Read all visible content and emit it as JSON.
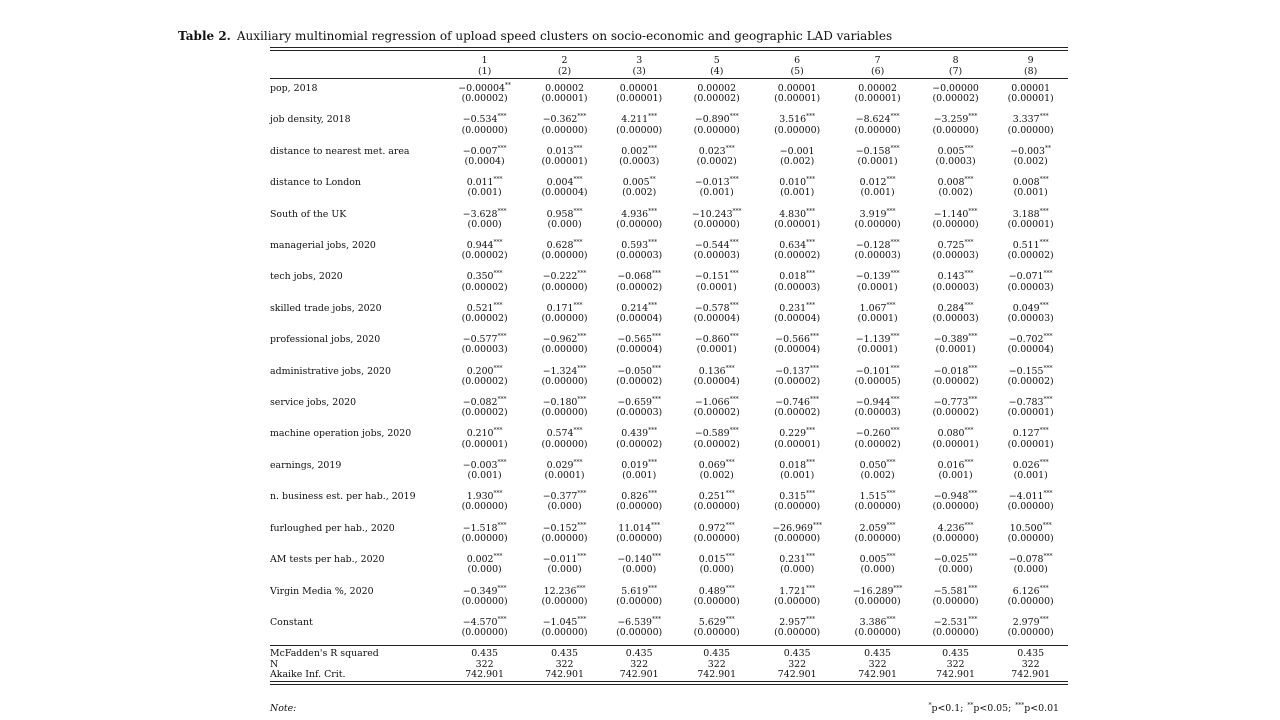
{
  "caption": {
    "label": "Table 2.",
    "text": "Auxiliary multinomial regression of upload speed clusters on socio-economic and geographic LAD variables"
  },
  "columns": {
    "top": [
      "1",
      "2",
      "3",
      "5",
      "6",
      "7",
      "8",
      "9"
    ],
    "sub": [
      "(1)",
      "(2)",
      "(3)",
      "(4)",
      "(5)",
      "(6)",
      "(7)",
      "(8)"
    ]
  },
  "rows": [
    {
      "label": "pop, 2018",
      "coef": [
        "−0.00004",
        "0.00002",
        "0.00001",
        "0.00002",
        "0.00001",
        "0.00002",
        "−0.00000",
        "0.00001"
      ],
      "stars": [
        "**",
        "",
        "",
        "",
        "",
        "",
        "",
        ""
      ],
      "se": [
        "(0.00002)",
        "(0.00001)",
        "(0.00001)",
        "(0.00002)",
        "(0.00001)",
        "(0.00001)",
        "(0.00002)",
        "(0.00001)"
      ]
    },
    {
      "label": "job density, 2018",
      "coef": [
        "−0.534",
        "−0.362",
        "4.211",
        "−0.890",
        "3.516",
        "−8.624",
        "−3.259",
        "3.337"
      ],
      "stars": [
        "***",
        "***",
        "***",
        "***",
        "***",
        "***",
        "***",
        "***"
      ],
      "se": [
        "(0.00000)",
        "(0.00000)",
        "(0.00000)",
        "(0.00000)",
        "(0.00000)",
        "(0.00000)",
        "(0.00000)",
        "(0.00000)"
      ]
    },
    {
      "label": "distance to nearest met. area",
      "coef": [
        "−0.007",
        "0.013",
        "0.002",
        "0.023",
        "−0.001",
        "−0.158",
        "0.005",
        "−0.003"
      ],
      "stars": [
        "***",
        "***",
        "***",
        "***",
        "",
        "***",
        "***",
        "**"
      ],
      "se": [
        "(0.0004)",
        "(0.00001)",
        "(0.0003)",
        "(0.0002)",
        "(0.002)",
        "(0.0001)",
        "(0.0003)",
        "(0.002)"
      ]
    },
    {
      "label": "distance to London",
      "coef": [
        "0.011",
        "0.004",
        "0.005",
        "−0.013",
        "0.010",
        "0.012",
        "0.008",
        "0.008"
      ],
      "stars": [
        "***",
        "***",
        "**",
        "***",
        "***",
        "***",
        "***",
        "***"
      ],
      "se": [
        "(0.001)",
        "(0.00004)",
        "(0.002)",
        "(0.001)",
        "(0.001)",
        "(0.001)",
        "(0.002)",
        "(0.001)"
      ]
    },
    {
      "label": "South of the UK",
      "coef": [
        "−3.628",
        "0.958",
        "4.936",
        "−10.243",
        "4.830",
        "3.919",
        "−1.140",
        "3.188"
      ],
      "stars": [
        "***",
        "***",
        "***",
        "***",
        "***",
        "***",
        "***",
        "***"
      ],
      "se": [
        "(0.000)",
        "(0.000)",
        "(0.00000)",
        "(0.00000)",
        "(0.00001)",
        "(0.00000)",
        "(0.00000)",
        "(0.00001)"
      ]
    },
    {
      "label": "managerial jobs, 2020",
      "coef": [
        "0.944",
        "0.628",
        "0.593",
        "−0.544",
        "0.634",
        "−0.128",
        "0.725",
        "0.511"
      ],
      "stars": [
        "***",
        "***",
        "***",
        "***",
        "***",
        "***",
        "***",
        "***"
      ],
      "se": [
        "(0.00002)",
        "(0.00000)",
        "(0.00003)",
        "(0.00003)",
        "(0.00002)",
        "(0.00003)",
        "(0.00003)",
        "(0.00002)"
      ]
    },
    {
      "label": "tech jobs, 2020",
      "coef": [
        "0.350",
        "−0.222",
        "−0.068",
        "−0.151",
        "0.018",
        "−0.139",
        "0.143",
        "−0.071"
      ],
      "stars": [
        "***",
        "***",
        "***",
        "***",
        "***",
        "***",
        "***",
        "***"
      ],
      "se": [
        "(0.00002)",
        "(0.00000)",
        "(0.00002)",
        "(0.0001)",
        "(0.00003)",
        "(0.0001)",
        "(0.00003)",
        "(0.00003)"
      ]
    },
    {
      "label": "skilled trade jobs, 2020",
      "coef": [
        "0.521",
        "0.171",
        "0.214",
        "−0.578",
        "0.231",
        "1.067",
        "0.284",
        "0.049"
      ],
      "stars": [
        "***",
        "***",
        "***",
        "***",
        "***",
        "***",
        "***",
        "***"
      ],
      "se": [
        "(0.00002)",
        "(0.00000)",
        "(0.00004)",
        "(0.00004)",
        "(0.00004)",
        "(0.0001)",
        "(0.00003)",
        "(0.00003)"
      ]
    },
    {
      "label": "professional jobs, 2020",
      "coef": [
        "−0.577",
        "−0.962",
        "−0.565",
        "−0.860",
        "−0.566",
        "−1.139",
        "−0.389",
        "−0.702"
      ],
      "stars": [
        "***",
        "***",
        "***",
        "***",
        "***",
        "***",
        "***",
        "***"
      ],
      "se": [
        "(0.00003)",
        "(0.00000)",
        "(0.00004)",
        "(0.0001)",
        "(0.00004)",
        "(0.0001)",
        "(0.0001)",
        "(0.00004)"
      ]
    },
    {
      "label": "administrative jobs, 2020",
      "coef": [
        "0.200",
        "−1.324",
        "−0.050",
        "0.136",
        "−0.137",
        "−0.101",
        "−0.018",
        "−0.155"
      ],
      "stars": [
        "***",
        "***",
        "***",
        "***",
        "***",
        "***",
        "***",
        "***"
      ],
      "se": [
        "(0.00002)",
        "(0.00000)",
        "(0.00002)",
        "(0.00004)",
        "(0.00002)",
        "(0.00005)",
        "(0.00002)",
        "(0.00002)"
      ]
    },
    {
      "label": "service jobs, 2020",
      "coef": [
        "−0.082",
        "−0.180",
        "−0.659",
        "−1.066",
        "−0.746",
        "−0.944",
        "−0.773",
        "−0.783"
      ],
      "stars": [
        "***",
        "***",
        "***",
        "***",
        "***",
        "***",
        "***",
        "***"
      ],
      "se": [
        "(0.00002)",
        "(0.00000)",
        "(0.00003)",
        "(0.00002)",
        "(0.00002)",
        "(0.00003)",
        "(0.00002)",
        "(0.00001)"
      ]
    },
    {
      "label": "machine operation jobs, 2020",
      "coef": [
        "0.210",
        "0.574",
        "0.439",
        "−0.589",
        "0.229",
        "−0.260",
        "0.080",
        "0.127"
      ],
      "stars": [
        "***",
        "***",
        "***",
        "***",
        "***",
        "***",
        "***",
        "***"
      ],
      "se": [
        "(0.00001)",
        "(0.00000)",
        "(0.00002)",
        "(0.00002)",
        "(0.00001)",
        "(0.00002)",
        "(0.00001)",
        "(0.00001)"
      ]
    },
    {
      "label": "earnings, 2019",
      "coef": [
        "−0.003",
        "0.029",
        "0.019",
        "0.069",
        "0.018",
        "0.050",
        "0.016",
        "0.026"
      ],
      "stars": [
        "***",
        "***",
        "***",
        "***",
        "***",
        "***",
        "***",
        "***"
      ],
      "se": [
        "(0.001)",
        "(0.0001)",
        "(0.001)",
        "(0.002)",
        "(0.001)",
        "(0.002)",
        "(0.001)",
        "(0.001)"
      ]
    },
    {
      "label": "n. business est. per hab., 2019",
      "coef": [
        "1.930",
        "−0.377",
        "0.826",
        "0.251",
        "0.315",
        "1.515",
        "−0.948",
        "−4.011"
      ],
      "stars": [
        "***",
        "***",
        "***",
        "***",
        "***",
        "***",
        "***",
        "***"
      ],
      "se": [
        "(0.00000)",
        "(0.000)",
        "(0.00000)",
        "(0.00000)",
        "(0.00000)",
        "(0.00000)",
        "(0.00000)",
        "(0.00000)"
      ]
    },
    {
      "label": "furloughed per hab., 2020",
      "coef": [
        "−1.518",
        "−0.152",
        "11.014",
        "0.972",
        "−26.969",
        "2.059",
        "4.236",
        "10.500"
      ],
      "stars": [
        "***",
        "***",
        "***",
        "***",
        "***",
        "***",
        "***",
        "***"
      ],
      "se": [
        "(0.00000)",
        "(0.00000)",
        "(0.00000)",
        "(0.00000)",
        "(0.00000)",
        "(0.00000)",
        "(0.00000)",
        "(0.00000)"
      ]
    },
    {
      "label": "AM tests per hab., 2020",
      "coef": [
        "0.002",
        "−0.011",
        "−0.140",
        "0.015",
        "0.231",
        "0.005",
        "−0.025",
        "−0.078"
      ],
      "stars": [
        "***",
        "***",
        "***",
        "***",
        "***",
        "***",
        "***",
        "***"
      ],
      "se": [
        "(0.000)",
        "(0.000)",
        "(0.000)",
        "(0.000)",
        "(0.000)",
        "(0.000)",
        "(0.000)",
        "(0.000)"
      ]
    },
    {
      "label": "Virgin Media %, 2020",
      "coef": [
        "−0.349",
        "12.236",
        "5.619",
        "0.489",
        "1.721",
        "−16.289",
        "−5.581",
        "6.126"
      ],
      "stars": [
        "***",
        "***",
        "***",
        "***",
        "***",
        "***",
        "***",
        "***"
      ],
      "se": [
        "(0.00000)",
        "(0.00000)",
        "(0.00000)",
        "(0.00000)",
        "(0.00000)",
        "(0.00000)",
        "(0.00000)",
        "(0.00000)"
      ]
    },
    {
      "label": "Constant",
      "coef": [
        "−4.570",
        "−1.045",
        "−6.539",
        "5.629",
        "2.957",
        "3.386",
        "−2.531",
        "2.979"
      ],
      "stars": [
        "***",
        "***",
        "***",
        "***",
        "***",
        "***",
        "***",
        "***"
      ],
      "se": [
        "(0.00000)",
        "(0.00000)",
        "(0.00000)",
        "(0.00000)",
        "(0.00000)",
        "(0.00000)",
        "(0.00000)",
        "(0.00000)"
      ]
    }
  ],
  "stats": [
    {
      "label": "McFadden's R squared",
      "values": [
        "0.435",
        "0.435",
        "0.435",
        "0.435",
        "0.435",
        "0.435",
        "0.435",
        "0.435"
      ]
    },
    {
      "label": "N",
      "values": [
        "322",
        "322",
        "322",
        "322",
        "322",
        "322",
        "322",
        "322"
      ]
    },
    {
      "label": "Akaike Inf. Crit.",
      "values": [
        "742.901",
        "742.901",
        "742.901",
        "742.901",
        "742.901",
        "742.901",
        "742.901",
        "742.901"
      ]
    }
  ],
  "note": {
    "label": "Note:",
    "levels": [
      {
        "stars": "*",
        "text": "p<0.1;"
      },
      {
        "stars": "**",
        "text": "p<0.05;"
      },
      {
        "stars": "***",
        "text": "p<0.01"
      }
    ]
  }
}
